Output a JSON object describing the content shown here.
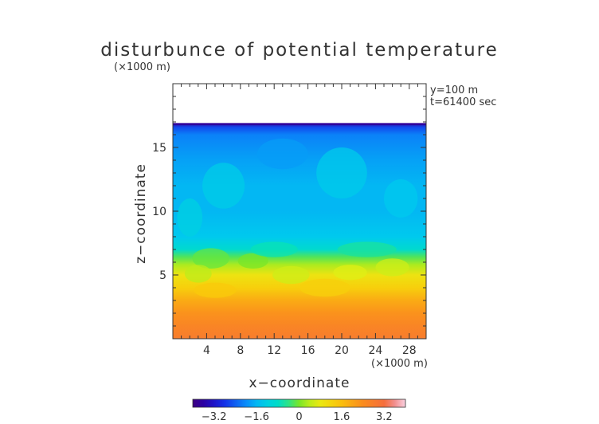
{
  "chart_data": {
    "type": "heatmap",
    "title": "disturbunce of potential temperature",
    "xlabel": "x−coordinate",
    "ylabel": "z−coordinate",
    "x_scale_note": "(×1000 m)",
    "y_scale_note": "(×1000 m)",
    "annotations": [
      "y=100 m",
      "t=61400 sec"
    ],
    "xlim": [
      0,
      30
    ],
    "ylim": [
      0,
      20
    ],
    "x_ticks": [
      4,
      8,
      12,
      16,
      20,
      24,
      28
    ],
    "x_tick_labels": [
      "4",
      "8",
      "12",
      "16",
      "20",
      "24",
      "28"
    ],
    "y_ticks": [
      5,
      10,
      15
    ],
    "y_tick_labels": [
      "5",
      "10",
      "15"
    ],
    "colorbar": {
      "range": [
        -4,
        4
      ],
      "ticks": [
        -3.2,
        -1.6,
        0,
        1.6,
        3.2
      ],
      "tick_labels": [
        "−3.2",
        "−1.6",
        "0",
        "1.6",
        "3.2"
      ]
    },
    "field_top_z": 16.9,
    "profile": [
      {
        "z": 0.0,
        "value": 2.8
      },
      {
        "z": 1.0,
        "value": 2.6
      },
      {
        "z": 2.0,
        "value": 2.3
      },
      {
        "z": 3.0,
        "value": 1.9
      },
      {
        "z": 4.0,
        "value": 1.3
      },
      {
        "z": 5.0,
        "value": 0.9
      },
      {
        "z": 5.8,
        "value": 0.3
      },
      {
        "z": 6.4,
        "value": -0.2
      },
      {
        "z": 7.0,
        "value": -0.9
      },
      {
        "z": 8.0,
        "value": -1.4
      },
      {
        "z": 10.0,
        "value": -1.6
      },
      {
        "z": 12.0,
        "value": -1.6
      },
      {
        "z": 14.0,
        "value": -1.8
      },
      {
        "z": 16.0,
        "value": -2.1
      },
      {
        "z": 16.6,
        "value": -2.6
      },
      {
        "z": 16.9,
        "value": -3.8
      }
    ],
    "grid": false,
    "legend": "colorbar-bottom"
  }
}
